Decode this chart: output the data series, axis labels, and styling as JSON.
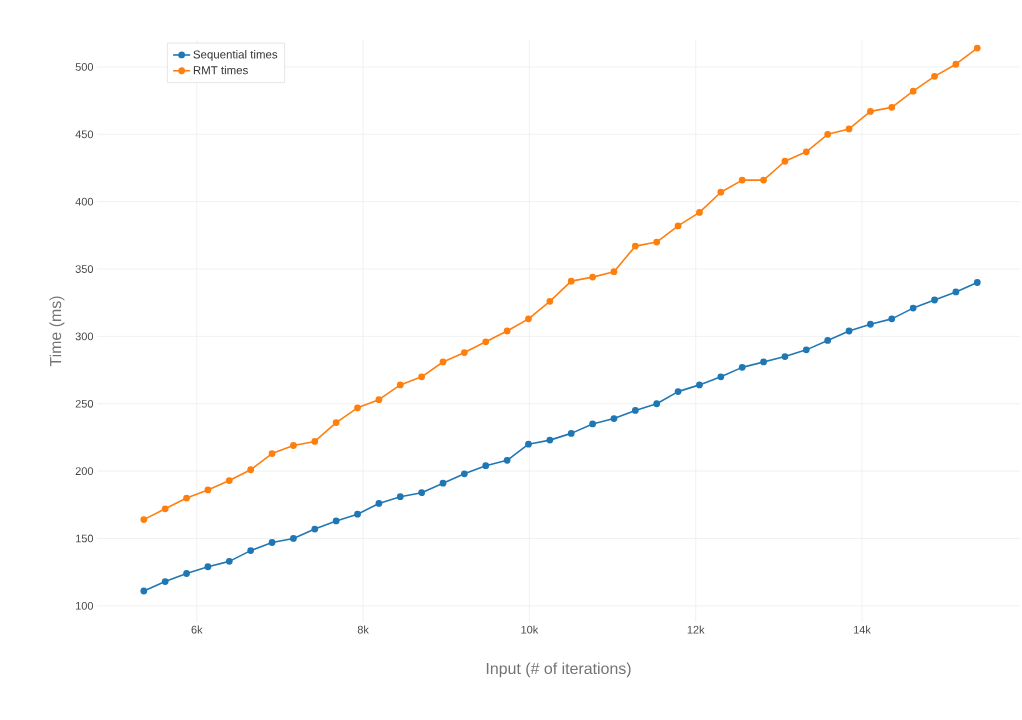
{
  "chart_data": {
    "type": "line",
    "xlabel": "Input (# of iterations)",
    "ylabel": "Time (ms)",
    "x": [
      5363,
      5620,
      5877,
      6134,
      6391,
      6648,
      6905,
      7162,
      7419,
      7676,
      7933,
      8190,
      8447,
      8704,
      8961,
      9218,
      9475,
      9732,
      9989,
      10246,
      10503,
      10760,
      11017,
      11274,
      11531,
      11788,
      12045,
      12302,
      12559,
      12816,
      13073,
      13330,
      13587,
      13844,
      14101,
      14358,
      14615,
      14872,
      15129,
      15386
    ],
    "series": [
      {
        "name": "Sequential times",
        "color": "#1f77b4",
        "values": [
          111,
          118,
          124,
          129,
          133,
          141,
          147,
          150,
          157,
          163,
          168,
          176,
          181,
          184,
          191,
          198,
          204,
          208,
          220,
          223,
          228,
          235,
          239,
          245,
          250,
          259,
          264,
          270,
          277,
          281,
          285,
          290,
          297,
          304,
          309,
          313,
          321,
          327,
          333,
          340
        ]
      },
      {
        "name": "RMT times",
        "color": "#ff7f0e",
        "values": [
          164,
          172,
          180,
          186,
          193,
          201,
          213,
          219,
          222,
          236,
          247,
          253,
          264,
          270,
          281,
          288,
          296,
          304,
          313,
          326,
          341,
          344,
          348,
          367,
          370,
          382,
          392,
          407,
          416,
          416,
          430,
          437,
          450,
          454,
          467,
          470,
          482,
          493,
          502,
          514
        ]
      }
    ],
    "xlim": [
      4800,
      15900
    ],
    "ylim": [
      88,
      520
    ],
    "xticks": [
      {
        "value": 6000,
        "label": "6k"
      },
      {
        "value": 8000,
        "label": "8k"
      },
      {
        "value": 10000,
        "label": "10k"
      },
      {
        "value": 12000,
        "label": "12k"
      },
      {
        "value": 14000,
        "label": "14k"
      }
    ],
    "yticks": [
      100,
      150,
      200,
      250,
      300,
      350,
      400,
      450,
      500
    ],
    "grid": true,
    "legend": "top left",
    "marker": "circle",
    "line_style": "solid"
  }
}
